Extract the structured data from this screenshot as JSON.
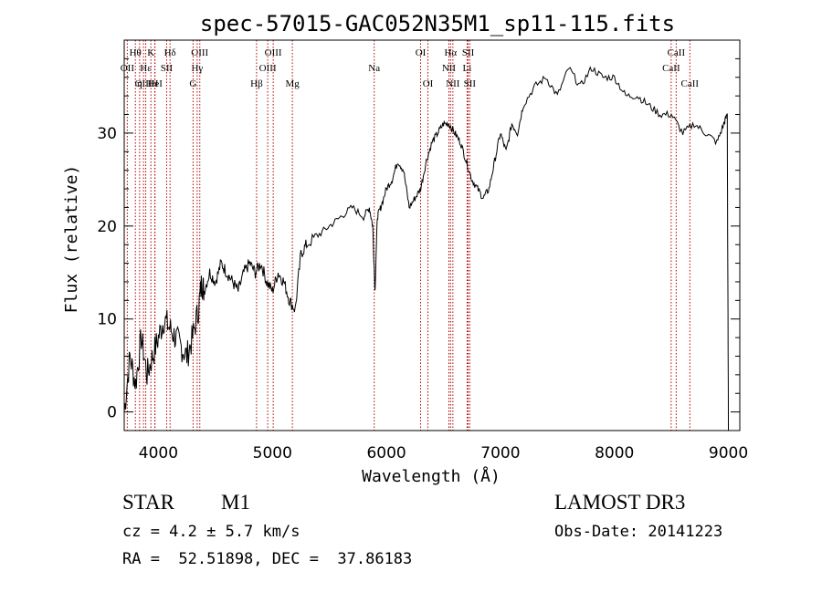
{
  "chart_data": {
    "type": "line",
    "title": "spec-57015-GAC052N35M1_sp11-115.fits",
    "xlabel": "Wavelength (Å)",
    "ylabel": "Flux (relative)",
    "xlim": [
      3700,
      9100
    ],
    "ylim": [
      -2,
      40
    ],
    "xticks": [
      4000,
      5000,
      6000,
      7000,
      8000,
      9000
    ],
    "yticks": [
      0,
      10,
      20,
      30
    ],
    "grid": false,
    "series": [
      {
        "name": "flux",
        "x": [
          3700,
          3750,
          3800,
          3850,
          3900,
          3950,
          4000,
          4050,
          4100,
          4150,
          4200,
          4250,
          4300,
          4350,
          4380,
          4400,
          4450,
          4500,
          4550,
          4600,
          4650,
          4700,
          4750,
          4800,
          4850,
          4900,
          4950,
          5000,
          5050,
          5100,
          5150,
          5200,
          5250,
          5300,
          5400,
          5500,
          5600,
          5700,
          5800,
          5850,
          5880,
          5900,
          5920,
          5950,
          6000,
          6050,
          6100,
          6150,
          6200,
          6250,
          6300,
          6350,
          6400,
          6450,
          6500,
          6550,
          6600,
          6650,
          6700,
          6750,
          6800,
          6850,
          6900,
          6950,
          7000,
          7050,
          7100,
          7150,
          7200,
          7300,
          7400,
          7500,
          7600,
          7700,
          7800,
          7900,
          8000,
          8100,
          8200,
          8300,
          8400,
          8500,
          8600,
          8700,
          8800,
          8900,
          8960,
          8990,
          9000
        ],
        "y": [
          0,
          6,
          3,
          8,
          4,
          6,
          8,
          10,
          9,
          8,
          7,
          6,
          8,
          11,
          14,
          13,
          15,
          14,
          16,
          15,
          14,
          13,
          15,
          16,
          15,
          16,
          14,
          13,
          15,
          14,
          12,
          11,
          17,
          18,
          19,
          20,
          21,
          22,
          21,
          22,
          20,
          13,
          21,
          22,
          24,
          25,
          27,
          26,
          22,
          23,
          24,
          27,
          29,
          30,
          31,
          31,
          30,
          29,
          27,
          25,
          24,
          23,
          24,
          27,
          30,
          28,
          31,
          30,
          33,
          35,
          36,
          34,
          37,
          35,
          37,
          36,
          36,
          34,
          34,
          33,
          32,
          32,
          30,
          31,
          30,
          29,
          31,
          32,
          -2
        ]
      }
    ],
    "line_markers": [
      {
        "label": "Hθ",
        "x": 3798,
        "row": 0
      },
      {
        "label": "OII",
        "x": 3727,
        "row": 1
      },
      {
        "label": "OIII",
        "x": 3869,
        "row": 2
      },
      {
        "label": "Hε",
        "x": 3889,
        "row": 1
      },
      {
        "label": "η",
        "x": 3835,
        "row": 2
      },
      {
        "label": "HeI",
        "x": 3970,
        "row": 2
      },
      {
        "label": "K",
        "x": 3934,
        "row": 0
      },
      {
        "label": "H",
        "x": 3968,
        "row": 2
      },
      {
        "label": "SII",
        "x": 4072,
        "row": 1
      },
      {
        "label": "Hδ",
        "x": 4102,
        "row": 0
      },
      {
        "label": "OIII",
        "x": 4363,
        "row": 0
      },
      {
        "label": "Hγ",
        "x": 4340,
        "row": 1
      },
      {
        "label": "G",
        "x": 4304,
        "row": 2
      },
      {
        "label": "Hβ",
        "x": 4861,
        "row": 2
      },
      {
        "label": "OIII",
        "x": 4959,
        "row": 1
      },
      {
        "label": "OIII",
        "x": 5007,
        "row": 0
      },
      {
        "label": "Mg",
        "x": 5175,
        "row": 2
      },
      {
        "label": "Na",
        "x": 5893,
        "row": 1
      },
      {
        "label": "OI",
        "x": 6300,
        "row": 0
      },
      {
        "label": "OI",
        "x": 6364,
        "row": 2
      },
      {
        "label": "Hα",
        "x": 6563,
        "row": 0
      },
      {
        "label": "NII",
        "x": 6548,
        "row": 1
      },
      {
        "label": "NII",
        "x": 6583,
        "row": 2
      },
      {
        "label": "SII",
        "x": 6717,
        "row": 0
      },
      {
        "label": "Li",
        "x": 6708,
        "row": 1
      },
      {
        "label": "SII",
        "x": 6731,
        "row": 2
      },
      {
        "label": "CaII",
        "x": 8542,
        "row": 0
      },
      {
        "label": "CaII",
        "x": 8498,
        "row": 1
      },
      {
        "label": "CaII",
        "x": 8662,
        "row": 2
      }
    ]
  },
  "info": {
    "object_class": "STAR",
    "subclass": "M1",
    "survey": "LAMOST DR3",
    "cz": "cz = 4.2 ± 5.7 km/s",
    "obs_date": "Obs-Date: 20141223",
    "coords": "RA =  52.51898, DEC =  37.86183"
  }
}
